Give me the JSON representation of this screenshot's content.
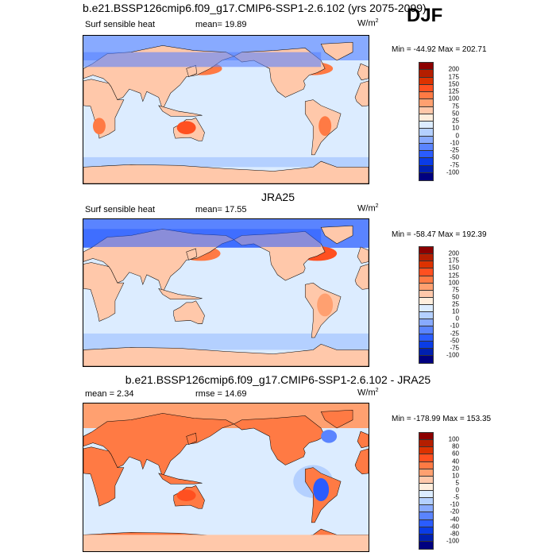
{
  "figure": {
    "title": "b.e21.BSSP126cmip6.f09_g17.CMIP6-SSP1-2.6.102 (yrs 2075-2099)",
    "season": "DJF"
  },
  "panels": [
    {
      "title": "",
      "left_label": "Surf sensible heat",
      "stat1": "mean=  19.89",
      "stat2": "",
      "units": "W/m",
      "units_sup": "2",
      "minmax": "Min = -44.92 Max = 202.71",
      "colorbar_labels": [
        "200",
        "175",
        "150",
        "125",
        "100",
        "75",
        "50",
        "25",
        "10",
        "0",
        "-10",
        "-25",
        "-50",
        "-75",
        "-100"
      ]
    },
    {
      "title": "JRA25",
      "left_label": "Surf sensible heat",
      "stat1": "mean=  17.55",
      "stat2": "",
      "units": "W/m",
      "units_sup": "2",
      "minmax": "Min = -58.47 Max = 192.39",
      "colorbar_labels": [
        "200",
        "175",
        "150",
        "125",
        "100",
        "75",
        "50",
        "25",
        "10",
        "0",
        "-10",
        "-25",
        "-50",
        "-75",
        "-100"
      ]
    },
    {
      "title": "b.e21.BSSP126cmip6.f09_g17.CMIP6-SSP1-2.6.102 - JRA25",
      "left_label": "mean =   2.34",
      "stat1": "rmse =  14.69",
      "stat2": "",
      "units": "W/m",
      "units_sup": "2",
      "minmax": "Min = -178.99 Max = 153.35",
      "colorbar_labels": [
        "100",
        "80",
        "60",
        "40",
        "20",
        "10",
        "5",
        "0",
        "-5",
        "-10",
        "-20",
        "-40",
        "-60",
        "-80",
        "-100"
      ]
    }
  ],
  "colorbar_colors": [
    "#8c0000",
    "#b41e00",
    "#dc3200",
    "#ff5020",
    "#ff7a44",
    "#ffa070",
    "#ffc8aa",
    "#ffeedd",
    "#dcecff",
    "#b4d0ff",
    "#88aaff",
    "#5a84ff",
    "#2a5cff",
    "#0a3ce6",
    "#0020b0",
    "#000080"
  ]
}
